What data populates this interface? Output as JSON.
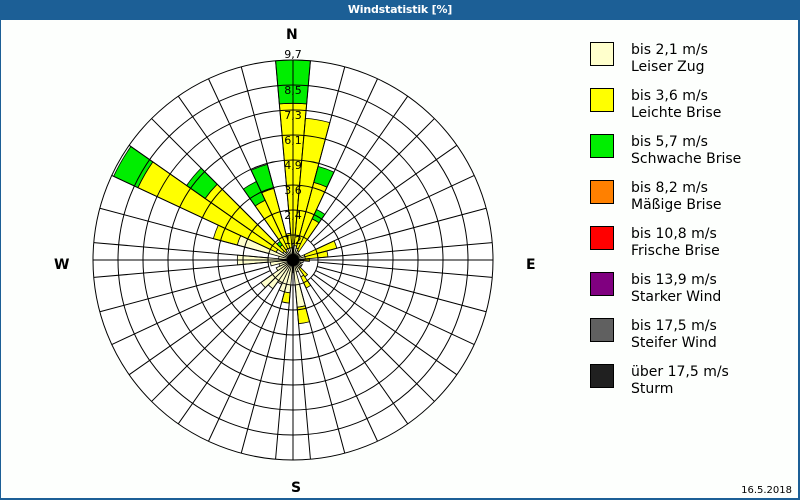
{
  "window": {
    "title": "Windstatistik [%]"
  },
  "compass": {
    "north": "N",
    "east": "E",
    "south": "S",
    "west": "W"
  },
  "footer": {
    "date": "16.5.2018"
  },
  "legend": {
    "items": [
      {
        "range": "bis 2,1 m/s",
        "name": "Leiser Zug",
        "color": "#ffffcc"
      },
      {
        "range": "bis 3,6 m/s",
        "name": "Leichte Brise",
        "color": "#ffff00"
      },
      {
        "range": "bis 5,7 m/s",
        "name": "Schwache Brise",
        "color": "#00ee00"
      },
      {
        "range": "bis 8,2 m/s",
        "name": "Mäßige Brise",
        "color": "#ff8000"
      },
      {
        "range": "bis 10,8 m/s",
        "name": "Frische Brise",
        "color": "#ff0000"
      },
      {
        "range": "bis 13,9 m/s",
        "name": "Starker Wind",
        "color": "#800080"
      },
      {
        "range": "bis 17,5 m/s",
        "name": "Steifer Wind",
        "color": "#606060"
      },
      {
        "range": "über 17,5 m/s",
        "name": "Sturm",
        "color": "#202020"
      }
    ]
  },
  "chart_data": {
    "type": "wind-rose",
    "title": "Windstatistik [%]",
    "unit": "%",
    "radial_ticks": [
      "1,2",
      "2,4",
      "3,6",
      "4,9",
      "6,1",
      "7,3",
      "8,5",
      "9,7"
    ],
    "radial_max": 9.7,
    "sector_width_deg": 10,
    "series_names": [
      "bis 2,1 m/s",
      "bis 3,6 m/s",
      "bis 5,7 m/s",
      "bis 8,2 m/s",
      "bis 10,8 m/s",
      "bis 13,9 m/s",
      "bis 17,5 m/s",
      "über 17,5 m/s"
    ],
    "series_colors": [
      "#ffffcc",
      "#ffff00",
      "#00ee00",
      "#ff8000",
      "#ff0000",
      "#800080",
      "#606060",
      "#202020"
    ],
    "sectors": [
      {
        "dir": 0,
        "cumulative": [
          0.8,
          7.6,
          9.7
        ]
      },
      {
        "dir": 10,
        "cumulative": [
          0.7,
          6.9
        ]
      },
      {
        "dir": 20,
        "cumulative": [
          0.6,
          3.9,
          4.7
        ]
      },
      {
        "dir": 30,
        "cumulative": [
          0.5,
          2.2,
          2.7
        ]
      },
      {
        "dir": 40,
        "cumulative": [
          0.4
        ]
      },
      {
        "dir": 50,
        "cumulative": [
          0.4
        ]
      },
      {
        "dir": 60,
        "cumulative": [
          0.4
        ]
      },
      {
        "dir": 70,
        "cumulative": [
          0.6,
          2.2
        ]
      },
      {
        "dir": 80,
        "cumulative": [
          0.6,
          1.7
        ]
      },
      {
        "dir": 90,
        "cumulative": [
          0.5,
          0.8
        ]
      },
      {
        "dir": 100,
        "cumulative": [
          0.5
        ]
      },
      {
        "dir": 110,
        "cumulative": [
          0.4
        ]
      },
      {
        "dir": 120,
        "cumulative": [
          0.5
        ]
      },
      {
        "dir": 130,
        "cumulative": [
          0.5
        ]
      },
      {
        "dir": 140,
        "cumulative": [
          0.5,
          1.0
        ]
      },
      {
        "dir": 150,
        "cumulative": [
          0.9,
          1.5
        ]
      },
      {
        "dir": 160,
        "cumulative": [
          0.6
        ]
      },
      {
        "dir": 170,
        "cumulative": [
          2.3,
          3.1
        ]
      },
      {
        "dir": 180,
        "cumulative": [
          0.6
        ]
      },
      {
        "dir": 190,
        "cumulative": [
          1.6,
          2.1
        ]
      },
      {
        "dir": 200,
        "cumulative": [
          1.6
        ]
      },
      {
        "dir": 210,
        "cumulative": [
          1.3
        ]
      },
      {
        "dir": 220,
        "cumulative": [
          1.7
        ]
      },
      {
        "dir": 230,
        "cumulative": [
          1.9
        ]
      },
      {
        "dir": 240,
        "cumulative": [
          0.9
        ]
      },
      {
        "dir": 250,
        "cumulative": [
          0.7
        ]
      },
      {
        "dir": 260,
        "cumulative": [
          1.1
        ]
      },
      {
        "dir": 270,
        "cumulative": [
          2.7
        ]
      },
      {
        "dir": 280,
        "cumulative": [
          0.7
        ]
      },
      {
        "dir": 290,
        "cumulative": [
          2.8,
          4.0
        ]
      },
      {
        "dir": 300,
        "cumulative": [
          0.9,
          8.3,
          9.6
        ]
      },
      {
        "dir": 310,
        "cumulative": [
          0.6,
          5.2,
          6.3
        ]
      },
      {
        "dir": 320,
        "cumulative": [
          0.5,
          0.9,
          1.1
        ]
      },
      {
        "dir": 330,
        "cumulative": [
          0.6,
          3.2,
          4.2
        ]
      },
      {
        "dir": 340,
        "cumulative": [
          0.6,
          3.6,
          4.8
        ]
      },
      {
        "dir": 350,
        "cumulative": [
          0.6,
          1.3
        ]
      }
    ]
  }
}
